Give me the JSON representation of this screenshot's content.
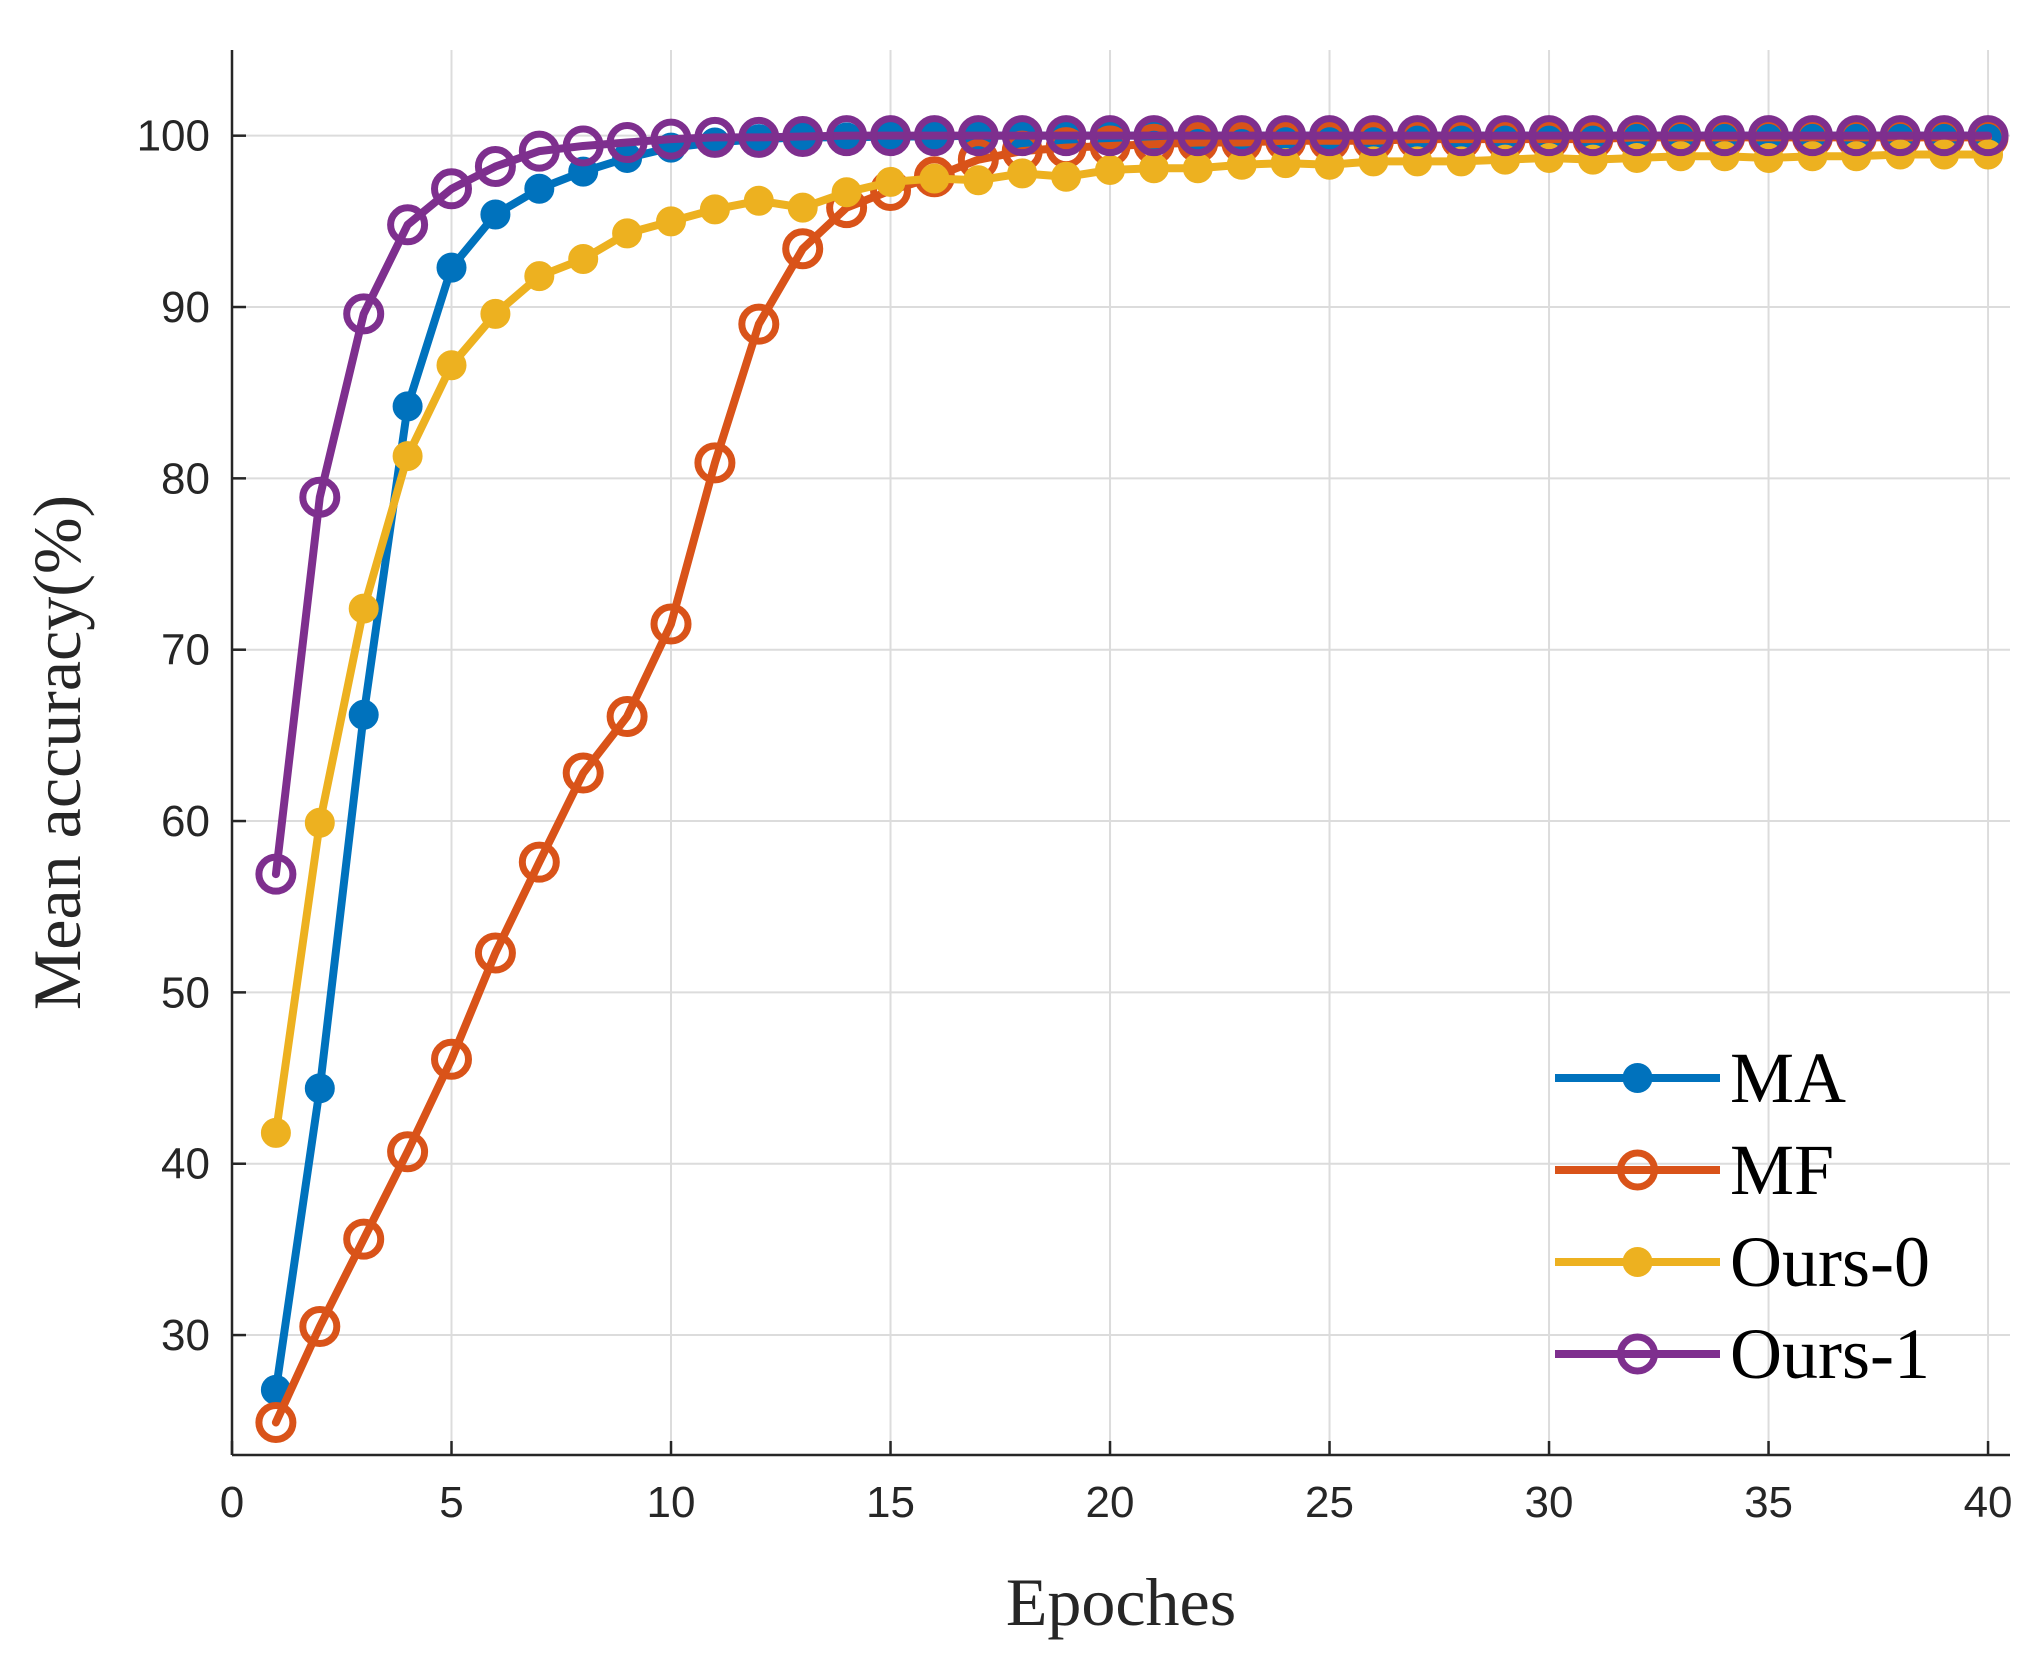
{
  "chart_data": {
    "type": "line",
    "title": "",
    "xlabel": "Epoches",
    "ylabel": "Mean accuracy(%)",
    "xlim": [
      0,
      40.5
    ],
    "ylim": [
      23,
      105
    ],
    "xticks": [
      0,
      5,
      10,
      15,
      20,
      25,
      30,
      35,
      40
    ],
    "yticks": [
      30,
      40,
      50,
      60,
      70,
      80,
      90,
      100
    ],
    "xtick_labels": [
      "0",
      "5",
      "10",
      "15",
      "20",
      "25",
      "30",
      "35",
      "40"
    ],
    "ytick_labels": [
      "30",
      "40",
      "50",
      "60",
      "70",
      "80",
      "90",
      "100"
    ],
    "grid": true,
    "legend_position": "bottom-right",
    "x": [
      1,
      2,
      3,
      4,
      5,
      6,
      7,
      8,
      9,
      10,
      11,
      12,
      13,
      14,
      15,
      16,
      17,
      18,
      19,
      20,
      21,
      22,
      23,
      24,
      25,
      26,
      27,
      28,
      29,
      30,
      31,
      32,
      33,
      34,
      35,
      36,
      37,
      38,
      39,
      40
    ],
    "series": [
      {
        "name": "MA",
        "color": "#0072BD",
        "marker": "filled",
        "values": [
          26.8,
          44.4,
          66.2,
          84.2,
          92.3,
          95.4,
          96.9,
          97.9,
          98.7,
          99.3,
          99.6,
          99.8,
          99.9,
          99.9,
          99.95,
          99.95,
          100,
          100,
          100,
          100,
          100,
          100,
          100,
          100,
          100,
          100,
          100,
          100,
          100,
          100,
          100,
          100,
          100,
          100,
          100,
          100,
          100,
          100,
          100,
          100
        ]
      },
      {
        "name": "MF",
        "color": "#D95319",
        "marker": "open",
        "values": [
          24.9,
          30.5,
          35.6,
          40.7,
          46.1,
          52.3,
          57.6,
          62.8,
          66.1,
          71.5,
          80.9,
          89.0,
          93.4,
          95.8,
          96.8,
          97.6,
          98.6,
          99.1,
          99.3,
          99.4,
          99.5,
          99.6,
          99.6,
          99.7,
          99.7,
          99.7,
          99.8,
          99.8,
          99.8,
          99.8,
          99.8,
          99.9,
          99.9,
          99.9,
          99.9,
          99.9,
          99.9,
          99.9,
          99.9,
          99.9
        ]
      },
      {
        "name": "Ours-0",
        "color": "#EDB120",
        "marker": "filled",
        "values": [
          41.8,
          59.9,
          72.4,
          81.3,
          86.6,
          89.6,
          91.8,
          92.8,
          94.3,
          95.0,
          95.7,
          96.2,
          95.8,
          96.7,
          97.3,
          97.5,
          97.4,
          97.8,
          97.6,
          98.0,
          98.1,
          98.1,
          98.3,
          98.4,
          98.3,
          98.5,
          98.5,
          98.5,
          98.6,
          98.7,
          98.6,
          98.7,
          98.8,
          98.8,
          98.7,
          98.8,
          98.8,
          98.9,
          98.9,
          98.9
        ]
      },
      {
        "name": "Ours-1",
        "color": "#7E2F8E",
        "marker": "open",
        "values": [
          56.9,
          78.9,
          89.6,
          94.8,
          96.9,
          98.2,
          99.1,
          99.4,
          99.6,
          99.8,
          99.9,
          99.9,
          99.95,
          100,
          100,
          100,
          100,
          100,
          100,
          100,
          100,
          100,
          100,
          100,
          100,
          100,
          100,
          100,
          100,
          100,
          100,
          100,
          100,
          100,
          100,
          100,
          100,
          100,
          100,
          100
        ]
      }
    ]
  }
}
